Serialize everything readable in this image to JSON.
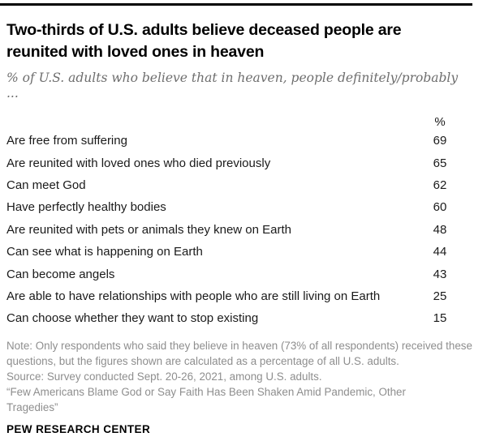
{
  "colors": {
    "rule": "#000000",
    "title_text": "#000000",
    "subtitle_text": "#6e6e6e",
    "table_text": "#1a1a1a",
    "note_text": "#8e8e8e",
    "background": "#ffffff"
  },
  "header": {
    "title": "Two-thirds of U.S. adults believe deceased people are reunited with loved ones in heaven",
    "subtitle": "% of U.S. adults who believe that in heaven, people definitely/probably ..."
  },
  "chart_data": {
    "type": "table",
    "title": "Two-thirds of U.S. adults believe deceased people are reunited with loved ones in heaven",
    "subtitle": "% of U.S. adults who believe that in heaven, people definitely/probably ...",
    "value_column_header": "%",
    "categories": [
      "Are free from suffering",
      "Are reunited with loved ones who died previously",
      "Can meet God",
      "Have perfectly healthy bodies",
      "Are reunited with pets or animals they knew on Earth",
      "Can see what is happening on Earth",
      "Can become angels",
      "Are able to have relationships with people who are still living on Earth",
      "Can choose whether they want to stop existing"
    ],
    "values": [
      69,
      65,
      62,
      60,
      48,
      44,
      43,
      25,
      15
    ]
  },
  "notes": {
    "note": "Note: Only respondents who said they believe in heaven (73% of all respondents) received these questions, but the figures shown are calculated as a percentage of all U.S. adults.",
    "source": "Source: Survey conducted Sept. 20-26, 2021, among U.S. adults.",
    "report": "“Few Americans Blame God or Say Faith Has Been Shaken Amid Pandemic, Other Tragedies”"
  },
  "footer": {
    "brand": "PEW RESEARCH CENTER"
  }
}
